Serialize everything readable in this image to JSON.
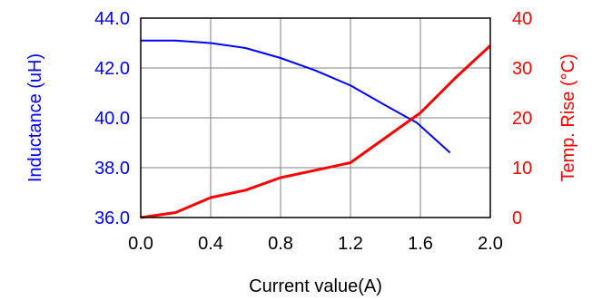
{
  "chart_data": {
    "type": "line",
    "title": "",
    "xlabel": "Current value(A)",
    "ylabel_left": "Inductance (uH)",
    "ylabel_right": "Temp. Rise (°C)",
    "xlim": [
      0.0,
      2.0
    ],
    "ylim_left": [
      36.0,
      44.0
    ],
    "ylim_right": [
      0,
      40
    ],
    "x_ticks": [
      "0.0",
      "0.4",
      "0.8",
      "1.2",
      "1.6",
      "2.0"
    ],
    "y_left_ticks": [
      "36.0",
      "38.0",
      "40.0",
      "42.0",
      "44.0"
    ],
    "y_right_ticks": [
      "0",
      "10",
      "20",
      "30",
      "40"
    ],
    "grid": true,
    "colors": {
      "inductance": "#0000ff",
      "temp_rise": "#ff0000",
      "grid": "#808080",
      "axis": "#000000"
    },
    "series": [
      {
        "axis": "left",
        "x": [
          0.0,
          0.2,
          0.4,
          0.6,
          0.8,
          1.0,
          1.2,
          1.4,
          1.58,
          1.77
        ],
        "values": [
          43.1,
          43.1,
          43.0,
          42.8,
          42.4,
          41.9,
          41.3,
          40.5,
          39.8,
          38.6
        ]
      },
      {
        "axis": "right",
        "x": [
          0.0,
          0.2,
          0.4,
          0.6,
          0.8,
          1.0,
          1.2,
          1.4,
          1.6,
          1.8,
          2.0
        ],
        "values": [
          0,
          1,
          4,
          5.5,
          8,
          9.5,
          11,
          16,
          21,
          28,
          34.5
        ]
      }
    ]
  }
}
